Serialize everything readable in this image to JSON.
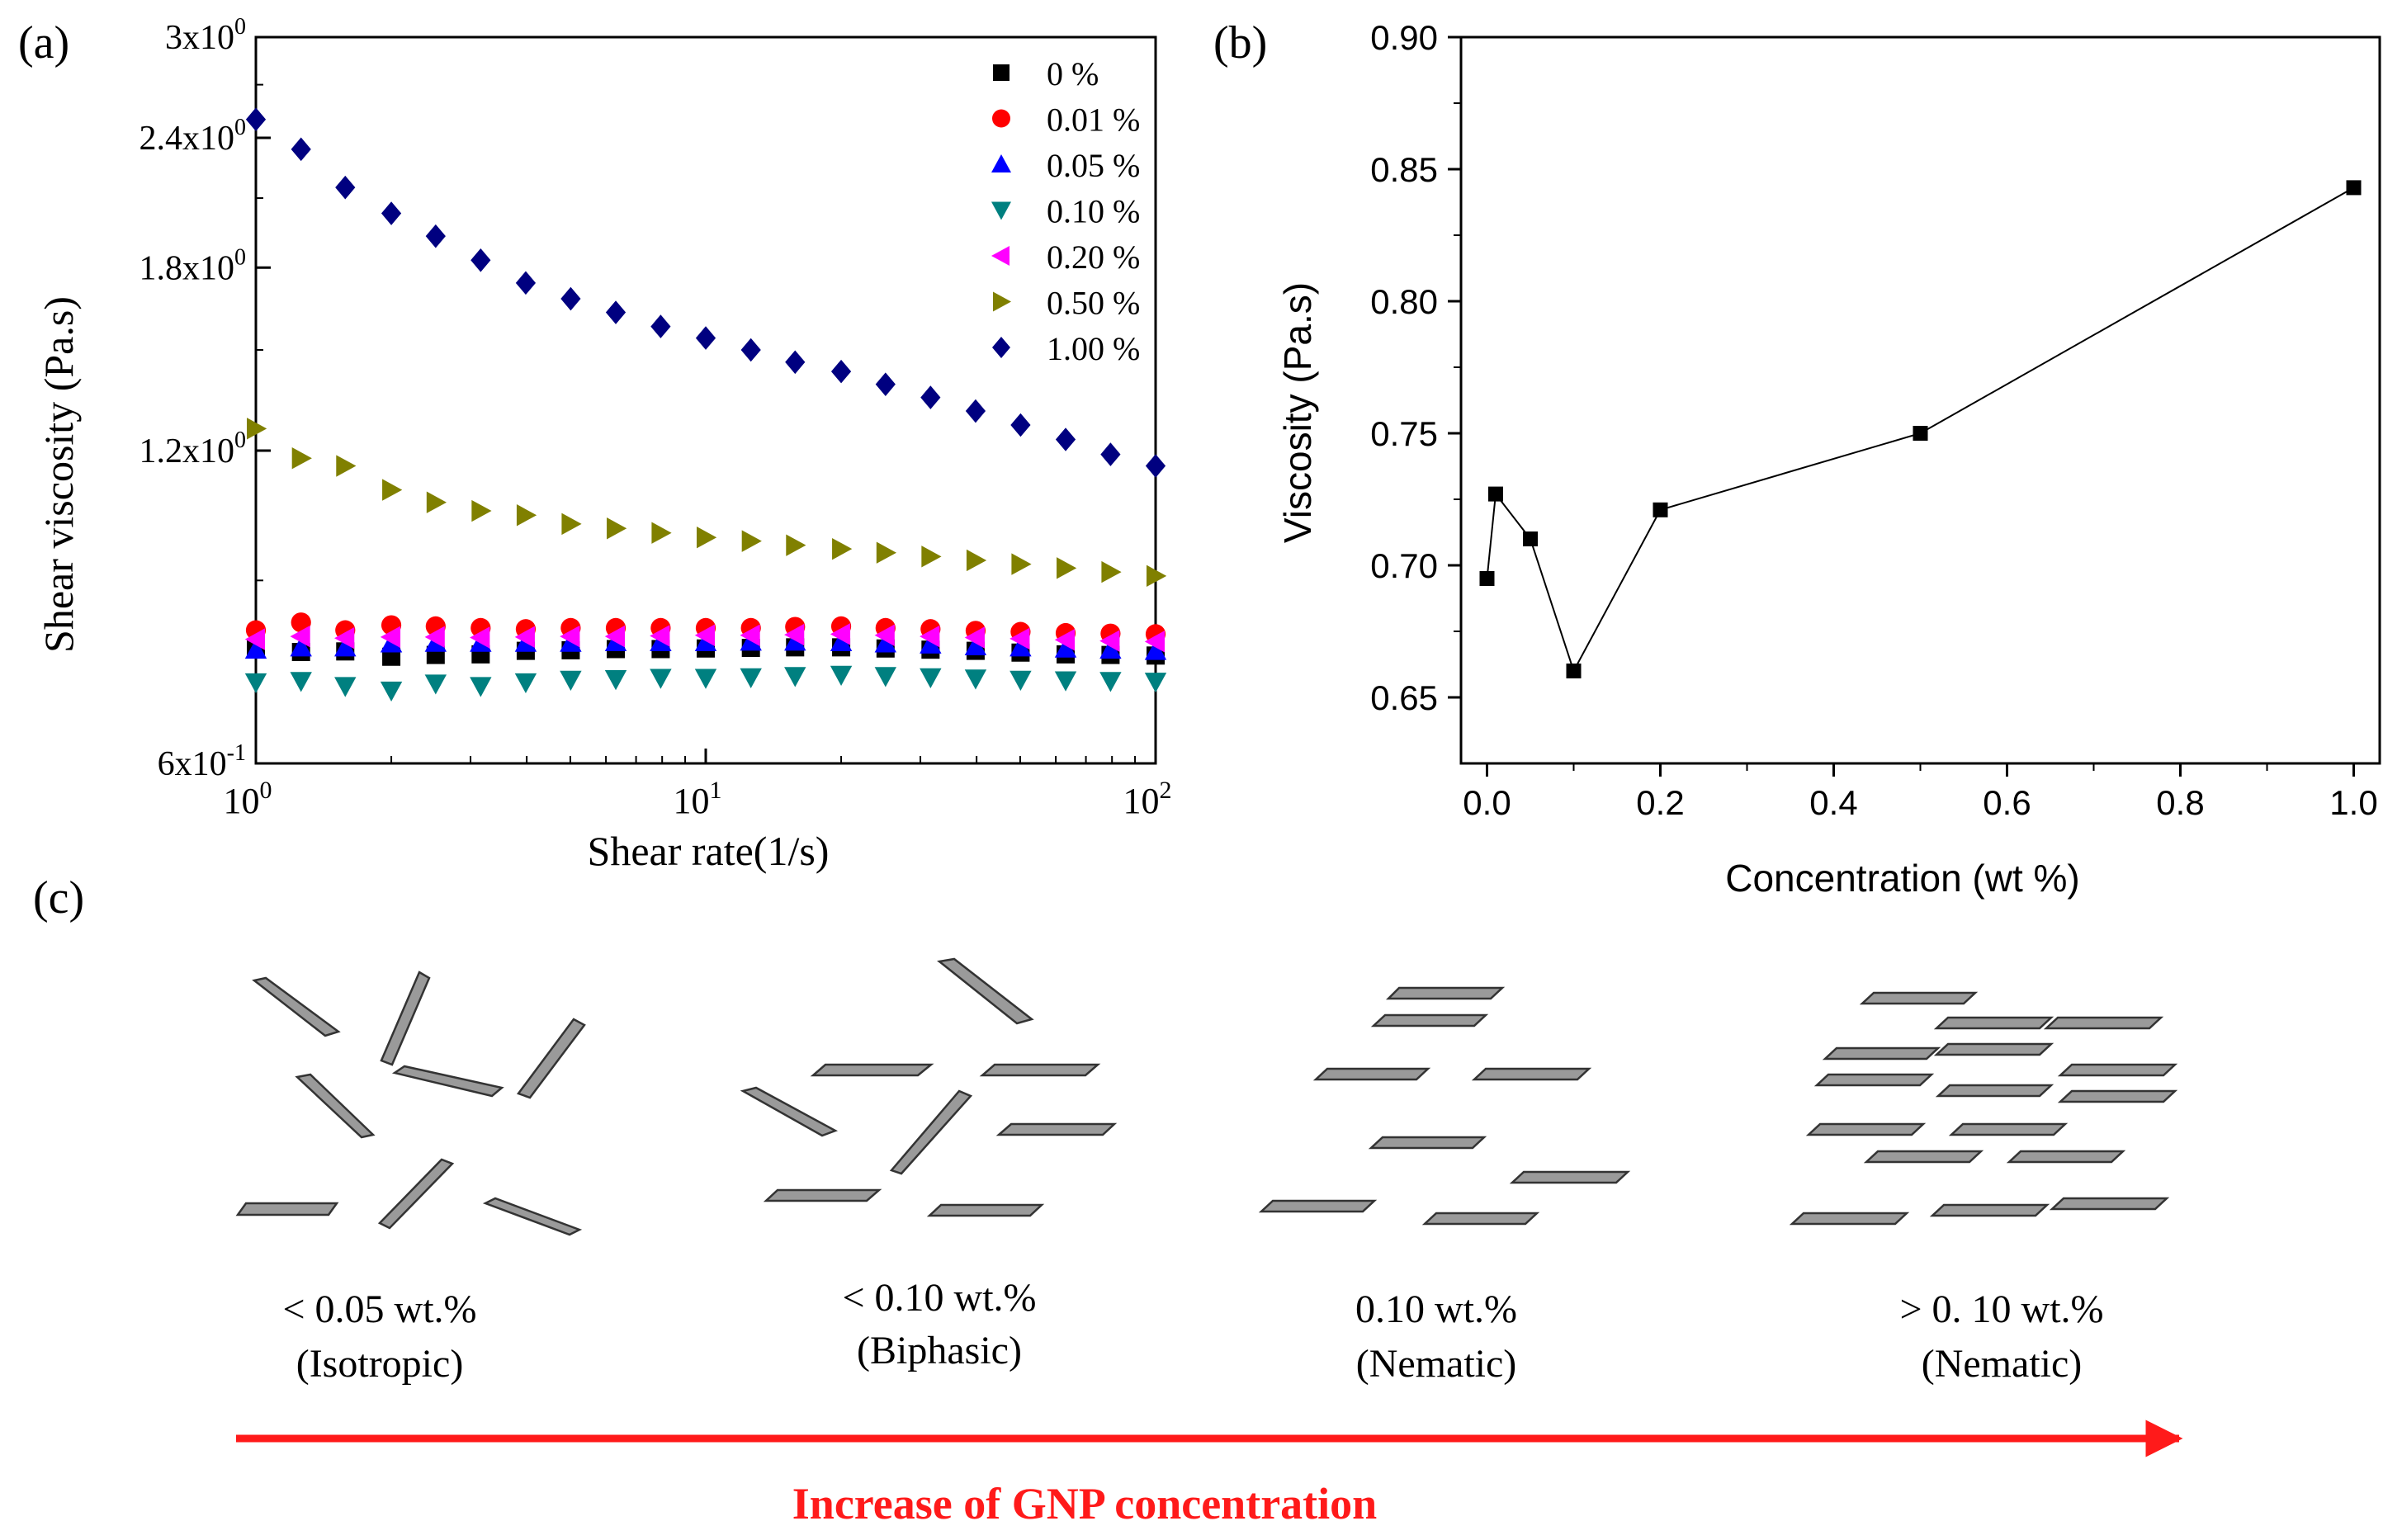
{
  "panels": {
    "a": "(a)",
    "b": "(b)",
    "c": "(c)"
  },
  "colors": {
    "arrow": "#ff1a1a",
    "platelet_fill": "#9a9a9a",
    "platelet_stroke": "#333333",
    "axis": "#000000"
  },
  "chart_data": [
    {
      "id": "a",
      "type": "scatter",
      "xscale": "log",
      "yscale": "log",
      "xlabel": "Shear rate(1/s)",
      "ylabel": "Shear viscosity (Pa.s)",
      "xlim": [
        1,
        100
      ],
      "ylim": [
        0.6,
        3.0
      ],
      "xticks": [
        {
          "value": 1,
          "base": "10",
          "exp": "0"
        },
        {
          "value": 10,
          "base": "10",
          "exp": "1"
        },
        {
          "value": 100,
          "base": "10",
          "exp": "2"
        }
      ],
      "yticks": [
        {
          "value": 0.6,
          "base": "6x10",
          "exp": "-1"
        },
        {
          "value": 1.2,
          "base": "1.2x10",
          "exp": "0"
        },
        {
          "value": 1.8,
          "base": "1.8x10",
          "exp": "0"
        },
        {
          "value": 2.4,
          "base": "2.4x10",
          "exp": "0"
        },
        {
          "value": 3.0,
          "base": "3x10",
          "exp": "0"
        }
      ],
      "x": [
        1.0,
        1.26,
        1.58,
        2.0,
        2.51,
        3.16,
        3.98,
        5.01,
        6.31,
        7.94,
        10.0,
        12.6,
        15.8,
        20.0,
        25.1,
        31.6,
        39.8,
        50.1,
        63.1,
        79.4,
        100.0
      ],
      "legend_position": "top-right",
      "series": [
        {
          "name": "0 %",
          "marker": "square",
          "color": "#000000",
          "values": [
            0.775,
            0.768,
            0.769,
            0.76,
            0.763,
            0.764,
            0.77,
            0.771,
            0.773,
            0.773,
            0.774,
            0.775,
            0.776,
            0.776,
            0.774,
            0.772,
            0.77,
            0.767,
            0.764,
            0.763,
            0.762
          ]
        },
        {
          "name": "0.01 %",
          "marker": "circle",
          "color": "#ff0000",
          "values": [
            0.806,
            0.82,
            0.806,
            0.815,
            0.813,
            0.81,
            0.808,
            0.81,
            0.81,
            0.81,
            0.81,
            0.81,
            0.812,
            0.813,
            0.81,
            0.808,
            0.805,
            0.803,
            0.801,
            0.8,
            0.799
          ]
        },
        {
          "name": "0.05 %",
          "marker": "triangle-up",
          "color": "#0000ff",
          "values": [
            0.772,
            0.776,
            0.776,
            0.783,
            0.784,
            0.784,
            0.784,
            0.784,
            0.785,
            0.785,
            0.785,
            0.786,
            0.786,
            0.785,
            0.783,
            0.781,
            0.778,
            0.776,
            0.774,
            0.772,
            0.77
          ]
        },
        {
          "name": "0.10 %",
          "marker": "triangle-down",
          "color": "#008080",
          "values": [
            0.718,
            0.72,
            0.712,
            0.705,
            0.716,
            0.712,
            0.718,
            0.722,
            0.723,
            0.725,
            0.725,
            0.726,
            0.728,
            0.73,
            0.728,
            0.726,
            0.724,
            0.722,
            0.721,
            0.72,
            0.719
          ]
        },
        {
          "name": "0.20 %",
          "marker": "triangle-left",
          "color": "#ff00ff",
          "values": [
            0.79,
            0.795,
            0.792,
            0.794,
            0.794,
            0.793,
            0.794,
            0.795,
            0.795,
            0.796,
            0.797,
            0.797,
            0.798,
            0.799,
            0.797,
            0.795,
            0.793,
            0.791,
            0.789,
            0.787,
            0.786
          ]
        },
        {
          "name": "0.50 %",
          "marker": "triangle-right",
          "color": "#808000",
          "values": [
            1.26,
            1.18,
            1.16,
            1.1,
            1.07,
            1.05,
            1.04,
            1.02,
            1.01,
            1.0,
            0.99,
            0.982,
            0.973,
            0.965,
            0.957,
            0.949,
            0.941,
            0.933,
            0.925,
            0.917,
            0.909
          ]
        },
        {
          "name": "1.00 %",
          "marker": "diamond",
          "color": "#000080",
          "values": [
            2.5,
            2.34,
            2.15,
            2.03,
            1.93,
            1.83,
            1.74,
            1.68,
            1.63,
            1.58,
            1.54,
            1.5,
            1.46,
            1.43,
            1.39,
            1.35,
            1.31,
            1.27,
            1.23,
            1.19,
            1.16
          ]
        }
      ]
    },
    {
      "id": "b",
      "type": "line",
      "xlabel": "Concentration (wt %)",
      "ylabel": "Viscosity (Pa.s)",
      "xlim": [
        -0.03,
        1.03
      ],
      "ylim": [
        0.625,
        0.9
      ],
      "xticks": [
        "0.0",
        "0.2",
        "0.4",
        "0.6",
        "0.8",
        "1.0"
      ],
      "yticks": [
        "0.65",
        "0.70",
        "0.75",
        "0.80",
        "0.85",
        "0.90"
      ],
      "marker": "square",
      "x": [
        0.0,
        0.01,
        0.05,
        0.1,
        0.2,
        0.5,
        1.0
      ],
      "values": [
        0.695,
        0.727,
        0.71,
        0.66,
        0.721,
        0.75,
        0.843
      ]
    }
  ],
  "schematic": {
    "stages": [
      {
        "concentration": "< 0.05 wt.%",
        "phase": "(Isotropic)"
      },
      {
        "concentration": "< 0.10 wt.%",
        "phase": "(Biphasic)"
      },
      {
        "concentration": "0.10 wt.%",
        "phase": "(Nematic)"
      },
      {
        "concentration": "> 0. 10 wt.%",
        "phase": "(Nematic)"
      }
    ],
    "arrow_label": "Increase of GNP concentration"
  }
}
